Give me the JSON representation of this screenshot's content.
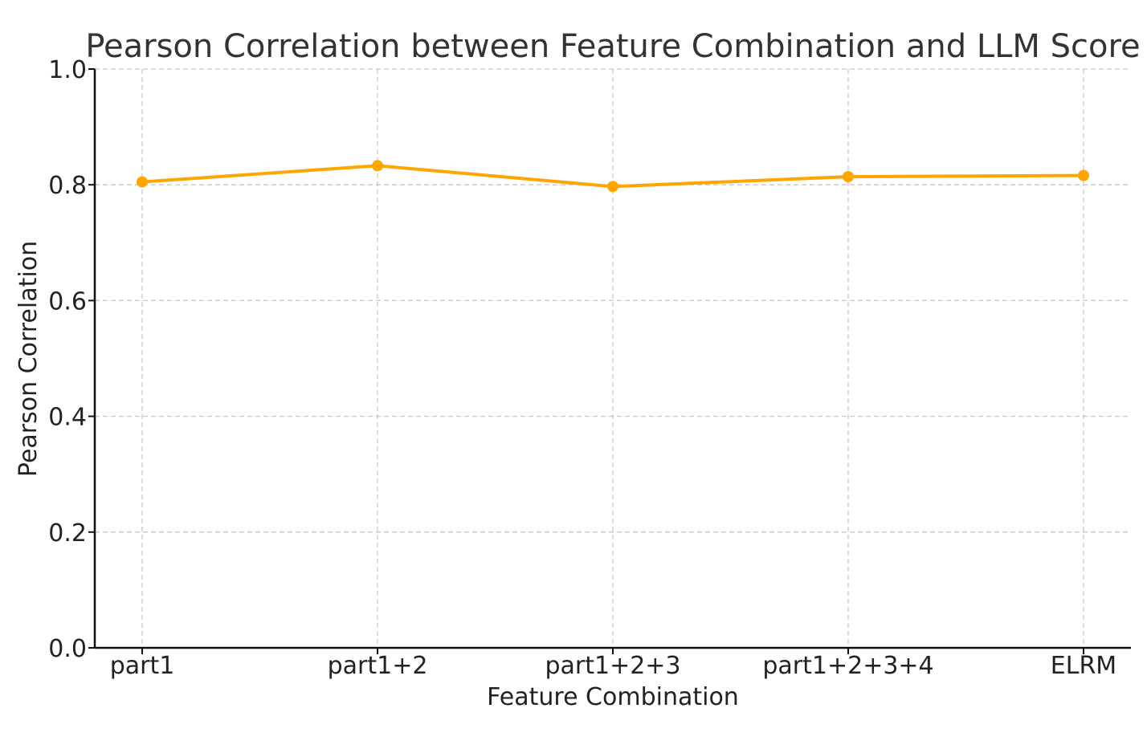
{
  "chart_data": {
    "type": "line",
    "title": "Pearson Correlation between Feature Combination and LLM Score",
    "xlabel": "Feature Combination",
    "ylabel": "Pearson Correlation",
    "categories": [
      "part1",
      "part1+2",
      "part1+2+3",
      "part1+2+3+4",
      "ELRM"
    ],
    "series": [
      {
        "values": [
          0.805,
          0.833,
          0.797,
          0.814,
          0.816
        ],
        "color": "#FFA500"
      }
    ],
    "ylim": [
      0.0,
      1.0
    ],
    "yticks": [
      "0.0",
      "0.2",
      "0.4",
      "0.6",
      "0.8",
      "1.0"
    ],
    "ytick_values": [
      0.0,
      0.2,
      0.4,
      0.6,
      0.8,
      1.0
    ],
    "grid": true,
    "legend": false
  }
}
